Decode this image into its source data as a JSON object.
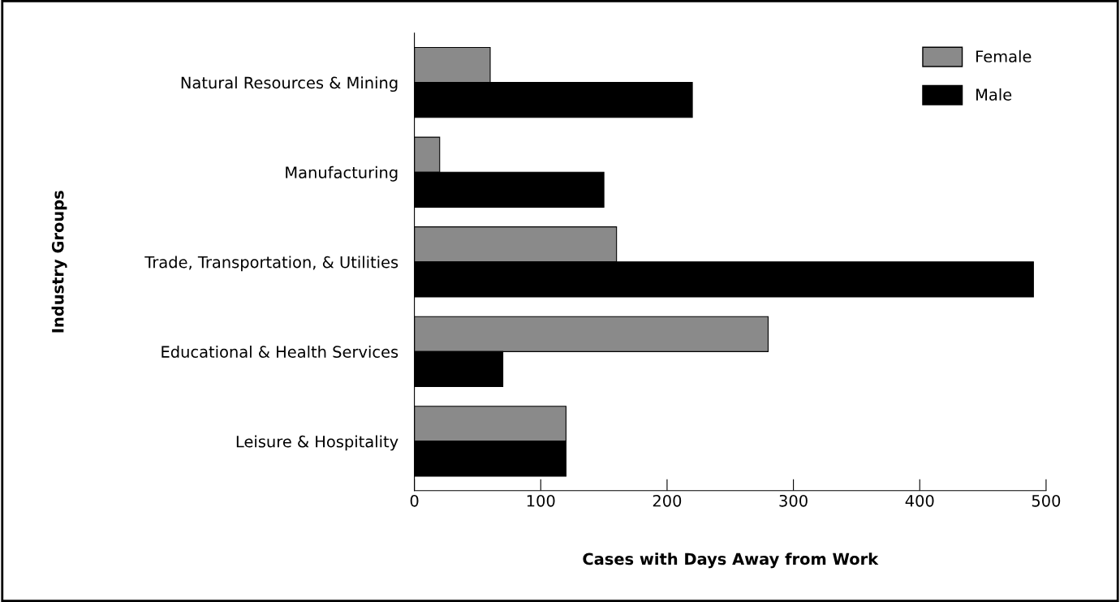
{
  "chart_data": {
    "type": "bar",
    "orientation": "horizontal",
    "categories": [
      "Natural Resources & Mining",
      "Manufacturing",
      "Trade, Transportation, & Utilities",
      "Educational & Health Services",
      "Leisure & Hospitality"
    ],
    "series": [
      {
        "name": "Female",
        "color": "#8a8a8a",
        "values": [
          60,
          20,
          160,
          280,
          120
        ]
      },
      {
        "name": "Male",
        "color": "#000000",
        "values": [
          220,
          150,
          490,
          70,
          120
        ]
      }
    ],
    "xlabel": "Cases with Days Away from Work",
    "ylabel": "Industry Groups",
    "xlim": [
      0,
      500
    ],
    "xticks": [
      0,
      100,
      200,
      300,
      400,
      500
    ],
    "grid": false,
    "legend": "top right"
  }
}
